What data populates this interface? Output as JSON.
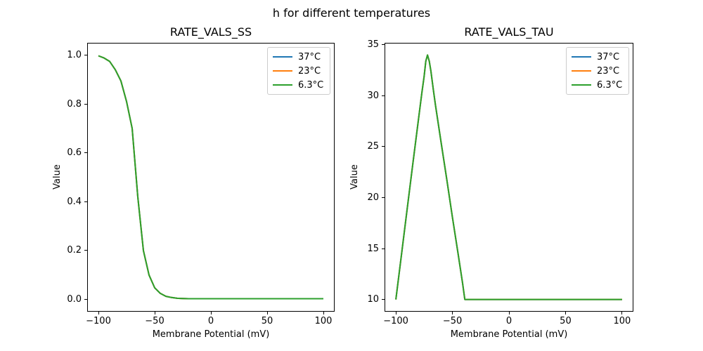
{
  "figure": {
    "title": "h for different temperatures",
    "background": "#ffffff"
  },
  "chart_data": [
    {
      "type": "line",
      "title": "RATE_VALS_SS",
      "xlabel": "Membrane Potential (mV)",
      "ylabel": "Value",
      "xlim": [
        -110,
        110
      ],
      "ylim": [
        -0.05,
        1.05
      ],
      "xticks": [
        -100,
        -50,
        0,
        50,
        100
      ],
      "xtick_labels": [
        "−100",
        "−50",
        "0",
        "50",
        "100"
      ],
      "yticks": [
        0.0,
        0.2,
        0.4,
        0.6,
        0.8,
        1.0
      ],
      "ytick_labels": [
        "0.0",
        "0.2",
        "0.4",
        "0.6",
        "0.8",
        "1.0"
      ],
      "grid": false,
      "legend_position": "upper right",
      "note": "curves for all three temperatures coincide exactly; only the last-drawn (green) line is visible",
      "x": [
        -100,
        -95,
        -90,
        -85,
        -80,
        -75,
        -70,
        -65,
        -60,
        -55,
        -50,
        -45,
        -40,
        -35,
        -30,
        -25,
        -20,
        -10,
        0,
        25,
        50,
        75,
        100
      ],
      "series": [
        {
          "name": "37°C",
          "color": "#1f77b4",
          "values": [
            0.997,
            0.988,
            0.974,
            0.94,
            0.894,
            0.81,
            0.7,
            0.42,
            0.2,
            0.1,
            0.048,
            0.025,
            0.013,
            0.008,
            0.005,
            0.004,
            0.003,
            0.003,
            0.003,
            0.003,
            0.003,
            0.003,
            0.003
          ]
        },
        {
          "name": "23°C",
          "color": "#ff7f0e",
          "values": [
            0.997,
            0.988,
            0.974,
            0.94,
            0.894,
            0.81,
            0.7,
            0.42,
            0.2,
            0.1,
            0.048,
            0.025,
            0.013,
            0.008,
            0.005,
            0.004,
            0.003,
            0.003,
            0.003,
            0.003,
            0.003,
            0.003,
            0.003
          ]
        },
        {
          "name": "6.3°C",
          "color": "#2ca02c",
          "values": [
            0.997,
            0.988,
            0.974,
            0.94,
            0.894,
            0.81,
            0.7,
            0.42,
            0.2,
            0.1,
            0.048,
            0.025,
            0.013,
            0.008,
            0.005,
            0.004,
            0.003,
            0.003,
            0.003,
            0.003,
            0.003,
            0.003,
            0.003
          ]
        }
      ]
    },
    {
      "type": "line",
      "title": "RATE_VALS_TAU",
      "xlabel": "Membrane Potential (mV)",
      "ylabel": "Value",
      "xlim": [
        -110,
        110
      ],
      "ylim": [
        8.8,
        35.2
      ],
      "xticks": [
        -100,
        -50,
        0,
        50,
        100
      ],
      "xtick_labels": [
        "−100",
        "−50",
        "0",
        "50",
        "100"
      ],
      "yticks": [
        10,
        15,
        20,
        25,
        30,
        35
      ],
      "ytick_labels": [
        "10",
        "15",
        "20",
        "25",
        "30",
        "35"
      ],
      "grid": false,
      "legend_position": "upper right",
      "note": "curves for all three temperatures coincide exactly; peak ≈ 34 at ≈ −72 mV, baseline 10",
      "x": [
        -100,
        -95,
        -90,
        -85,
        -80,
        -77,
        -75,
        -73.5,
        -72,
        -70.5,
        -69,
        -67,
        -65,
        -60,
        -55,
        -50,
        -45,
        -41,
        -39,
        -35,
        -30,
        -20,
        -10,
        0,
        25,
        50,
        75,
        100
      ],
      "series": [
        {
          "name": "37°C",
          "color": "#1f77b4",
          "values": [
            10,
            14.4,
            18.9,
            23.3,
            27.7,
            30.3,
            31.9,
            33.4,
            34,
            33.4,
            32.4,
            30.7,
            29.1,
            25.4,
            21.8,
            18.1,
            14.5,
            11.6,
            10,
            10,
            10,
            10,
            10,
            10,
            10,
            10,
            10,
            10
          ]
        },
        {
          "name": "23°C",
          "color": "#ff7f0e",
          "values": [
            10,
            14.4,
            18.9,
            23.3,
            27.7,
            30.3,
            31.9,
            33.4,
            34,
            33.4,
            32.4,
            30.7,
            29.1,
            25.4,
            21.8,
            18.1,
            14.5,
            11.6,
            10,
            10,
            10,
            10,
            10,
            10,
            10,
            10,
            10,
            10
          ]
        },
        {
          "name": "6.3°C",
          "color": "#2ca02c",
          "values": [
            10,
            14.4,
            18.9,
            23.3,
            27.7,
            30.3,
            31.9,
            33.4,
            34,
            33.4,
            32.4,
            30.7,
            29.1,
            25.4,
            21.8,
            18.1,
            14.5,
            11.6,
            10,
            10,
            10,
            10,
            10,
            10,
            10,
            10,
            10,
            10
          ]
        }
      ]
    }
  ]
}
